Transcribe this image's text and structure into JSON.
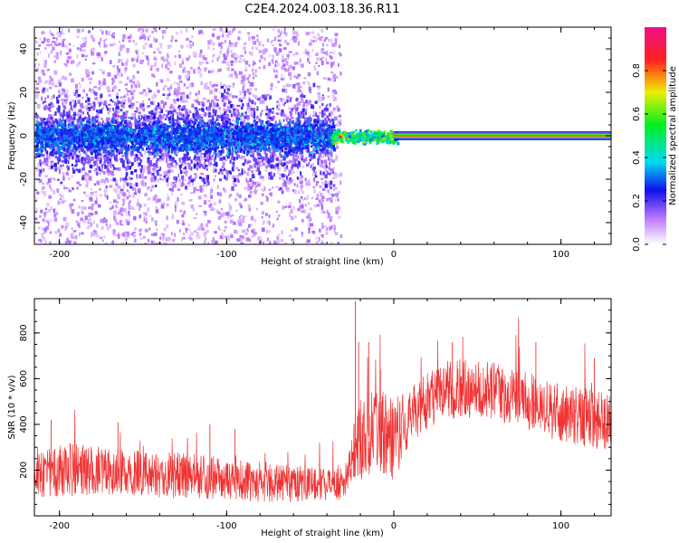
{
  "figure": {
    "title": "C2E4.2024.003.18.36.R11"
  },
  "colors": {
    "spectrum_low": "#cc99ff",
    "signal_line": "#ef3333",
    "snr_series": "#ef3333",
    "axis": "#000000"
  },
  "chart_data": [
    {
      "type": "heatmap",
      "title": "",
      "xlabel": "Height of straight line (km)",
      "ylabel": "Frequency (Hz)",
      "xlim": [
        -215,
        130
      ],
      "ylim": [
        -50,
        50
      ],
      "x_ticks": [
        "-200",
        "-100",
        "0",
        "100"
      ],
      "y_ticks": [
        "-40",
        "-20",
        "0",
        "20",
        "40"
      ],
      "grid": false,
      "noise_extent_x": [
        -215,
        -36
      ],
      "signal_line_start_x": 0,
      "signal_line_frequency": 0,
      "colorbar": {
        "label": "Normalized spectral amplitude",
        "range": [
          0,
          1
        ],
        "ticks": [
          "0.0",
          "0.2",
          "0.4",
          "0.6",
          "0.8"
        ],
        "stops": [
          {
            "value": 0.0,
            "color": "#ffffff"
          },
          {
            "value": 0.12,
            "color": "#bb77ff"
          },
          {
            "value": 0.25,
            "color": "#1010ee"
          },
          {
            "value": 0.38,
            "color": "#00ddee"
          },
          {
            "value": 0.55,
            "color": "#00ee22"
          },
          {
            "value": 0.7,
            "color": "#eeee00"
          },
          {
            "value": 0.85,
            "color": "#ff2020"
          },
          {
            "value": 1.0,
            "color": "#ee1188"
          }
        ]
      }
    },
    {
      "type": "line",
      "title": "",
      "xlabel": "Height of straight line (km)",
      "ylabel": "SNR (10 * v/v)",
      "xlim": [
        -215,
        130
      ],
      "ylim": [
        0,
        950
      ],
      "x_ticks": [
        "-200",
        "-100",
        "0",
        "100"
      ],
      "y_ticks": [
        "200",
        "400",
        "600",
        "800"
      ],
      "grid": false,
      "series": [
        {
          "color": "#ef3333",
          "x": [
            -215,
            -200,
            -180,
            -160,
            -140,
            -120,
            -100,
            -80,
            -60,
            -40,
            -30,
            -25,
            -22,
            -20,
            -15,
            -10,
            -5,
            0,
            10,
            20,
            30,
            40,
            50,
            60,
            70,
            80,
            90,
            100,
            110,
            120,
            130
          ],
          "mean": [
            190,
            200,
            200,
            190,
            180,
            175,
            160,
            150,
            140,
            135,
            140,
            250,
            320,
            330,
            350,
            380,
            360,
            330,
            440,
            500,
            540,
            560,
            555,
            545,
            520,
            500,
            480,
            450,
            440,
            420,
            400
          ],
          "band": [
            110,
            120,
            110,
            100,
            100,
            100,
            90,
            90,
            80,
            70,
            70,
            110,
            150,
            180,
            180,
            180,
            180,
            180,
            120,
            130,
            130,
            130,
            130,
            130,
            130,
            130,
            130,
            130,
            130,
            130,
            130
          ],
          "spikes": [
            {
              "x": -205,
              "y": 420
            },
            {
              "x": -165,
              "y": 410
            },
            {
              "x": -110,
              "y": 400
            },
            {
              "x": -95,
              "y": 380
            },
            {
              "x": -23,
              "y": 940
            },
            {
              "x": -21,
              "y": 760
            },
            {
              "x": -15,
              "y": 760
            },
            {
              "x": -8,
              "y": 640
            },
            {
              "x": 35,
              "y": 760
            },
            {
              "x": 85,
              "y": 760
            },
            {
              "x": 120,
              "y": 690
            }
          ]
        }
      ]
    }
  ]
}
